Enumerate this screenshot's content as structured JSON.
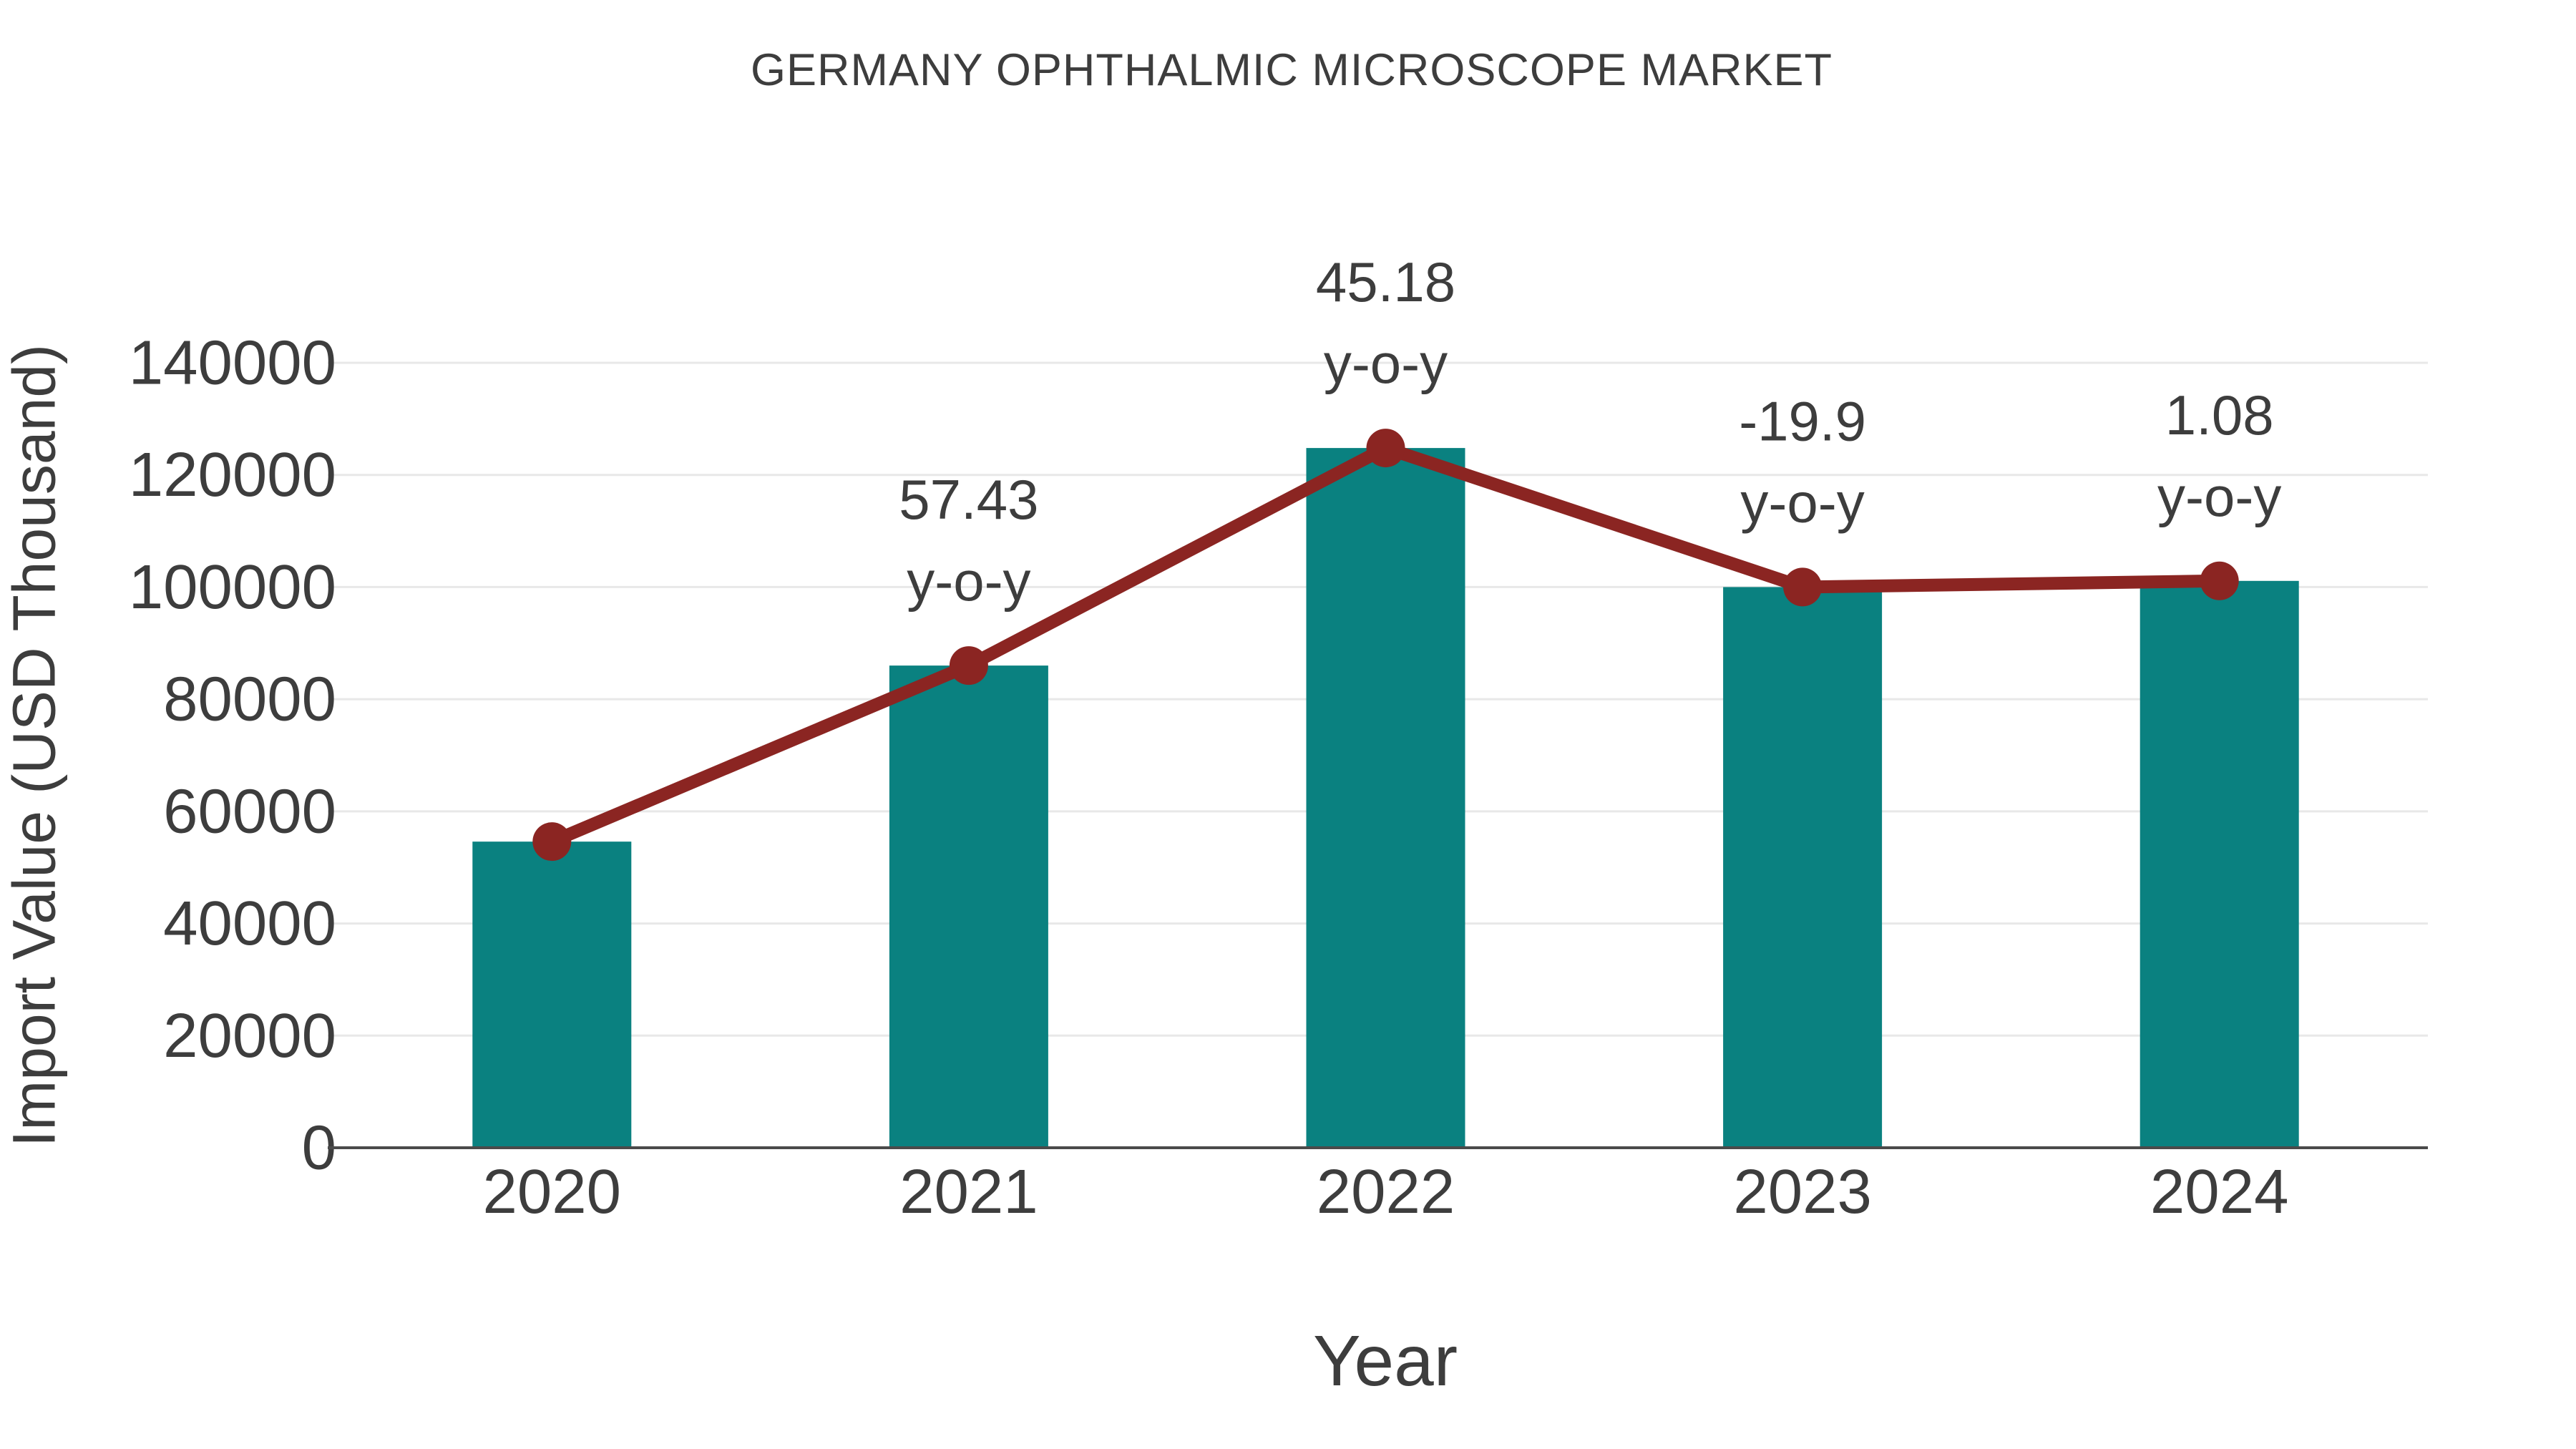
{
  "chart_data": {
    "type": "bar",
    "title": "GERMANY OPHTHALMIC MICROSCOPE MARKET",
    "xlabel": "Year",
    "ylabel": "Import Value (USD Thousand)",
    "categories": [
      "2020",
      "2021",
      "2022",
      "2023",
      "2024"
    ],
    "series": [
      {
        "name": "import-value-bars",
        "type": "bar",
        "color": "#0a8180",
        "values": [
          54600,
          86000,
          124800,
          100000,
          101100
        ]
      },
      {
        "name": "yoy-trend-line",
        "type": "line",
        "color": "#8b2522",
        "values": [
          54600,
          86000,
          124800,
          100000,
          101100
        ]
      }
    ],
    "yoy_annotations": [
      null,
      "57.43",
      "45.18",
      "-19.9",
      "1.08"
    ],
    "yoy_annotation_suffix": "y-o-y",
    "ylim": [
      0,
      140000
    ],
    "ytick_step": 20000,
    "ytick_labels": [
      "0",
      "20000",
      "40000",
      "60000",
      "80000",
      "100000",
      "120000",
      "140000"
    ],
    "grid": true,
    "legend_position": "none",
    "colors": {
      "bar": "#0a8180",
      "line": "#8b2522",
      "text": "#3d3d3d",
      "gridline": "#e8e8e8",
      "axis_line": "#4a4a4a",
      "background": "#ffffff"
    }
  }
}
